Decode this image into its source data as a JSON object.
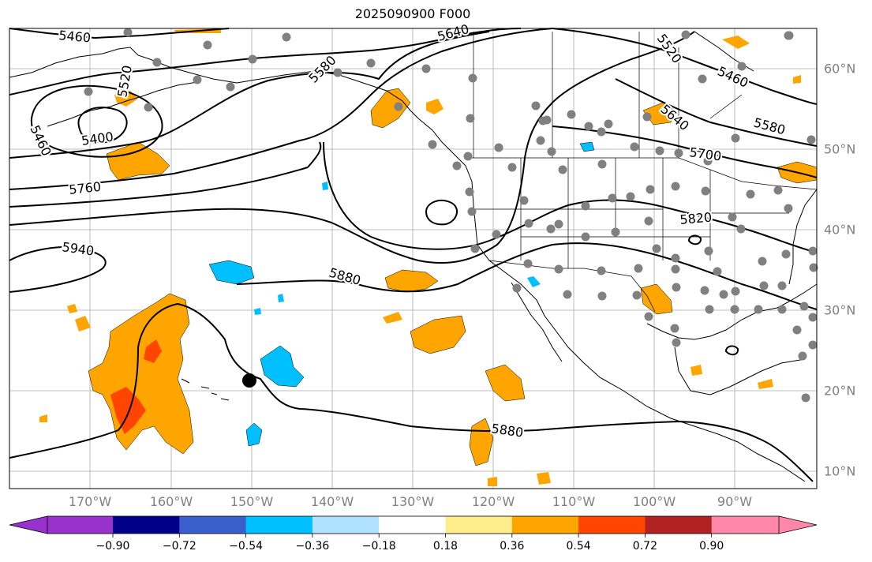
{
  "title": "2025090900 F000",
  "longitude_labels": [
    "170°W",
    "160°W",
    "150°W",
    "140°W",
    "130°W",
    "120°W",
    "110°W",
    "100°W",
    "90°W"
  ],
  "latitude_labels": [
    "60°N",
    "50°N",
    "40°N",
    "30°N",
    "20°N",
    "10°N"
  ],
  "contour_labels": [
    "5460",
    "5460",
    "5400",
    "5520",
    "5580",
    "5640",
    "5520",
    "5640",
    "5460",
    "5580",
    "5700",
    "5760",
    "5820",
    "5940",
    "5880",
    "5880"
  ],
  "colorbar": {
    "tick_labels": [
      "−0.90",
      "−0.72",
      "−0.54",
      "−0.36",
      "−0.18",
      "0.18",
      "0.36",
      "0.54",
      "0.72",
      "0.90"
    ],
    "colors": [
      "#9932cc",
      "#00008b",
      "#3a5fcd",
      "#00bfff",
      "#b0e2ff",
      "#ffffff",
      "#ffec8b",
      "#ffa500",
      "#ff4500",
      "#b22222",
      "#ff88aa"
    ]
  },
  "shading_colors": {
    "positive_light": "#ffec8b",
    "positive_mid": "#ffa500",
    "positive_high": "#ff4500",
    "negative_mid": "#00bfff",
    "negative_light": "#b0e2ff"
  },
  "station_marker_color": "#808080"
}
